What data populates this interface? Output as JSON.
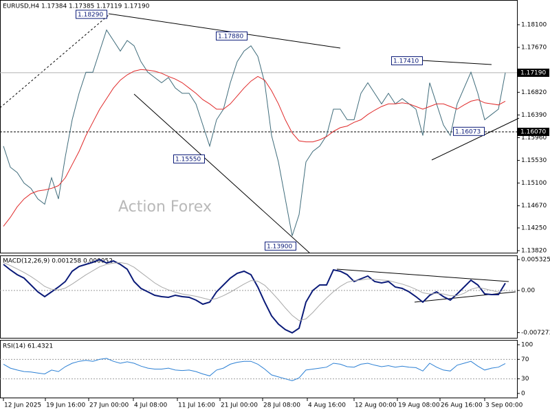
{
  "chart_data": [
    {
      "type": "line",
      "title": "EURUSD,H4  1.17384 1.17385 1.17119 1.17190",
      "watermark": "Action Forex",
      "series": [
        {
          "color": "#3e6b7a",
          "values": [
            1.158,
            1.154,
            1.153,
            1.151,
            1.15,
            1.148,
            1.147,
            1.152,
            1.148,
            1.156,
            1.163,
            1.168,
            1.172,
            1.172,
            1.176,
            1.18,
            1.178,
            1.176,
            1.178,
            1.177,
            1.174,
            1.172,
            1.171,
            1.17,
            1.171,
            1.169,
            1.168,
            1.168,
            1.166,
            1.162,
            1.158,
            1.163,
            1.165,
            1.17,
            1.174,
            1.176,
            1.177,
            1.175,
            1.17,
            1.16,
            1.155,
            1.148,
            1.141,
            1.145,
            1.155,
            1.157,
            1.158,
            1.16,
            1.165,
            1.165,
            1.163,
            1.163,
            1.168,
            1.17,
            1.168,
            1.166,
            1.168,
            1.166,
            1.167,
            1.166,
            1.165,
            1.16,
            1.17,
            1.166,
            1.162,
            1.16,
            1.166,
            1.169,
            1.172,
            1.168,
            1.163,
            1.164,
            1.165,
            1.1719
          ]
        },
        {
          "color": "#e02828",
          "values": [
            1.1428,
            1.1445,
            1.1465,
            1.148,
            1.149,
            1.1495,
            1.1497,
            1.15,
            1.1505,
            1.152,
            1.1545,
            1.157,
            1.16,
            1.1625,
            1.165,
            1.167,
            1.169,
            1.1705,
            1.1715,
            1.1722,
            1.1725,
            1.1724,
            1.1722,
            1.1718,
            1.1712,
            1.1707,
            1.17,
            1.169,
            1.168,
            1.1668,
            1.166,
            1.165,
            1.165,
            1.166,
            1.1675,
            1.169,
            1.1703,
            1.1712,
            1.1705,
            1.1685,
            1.166,
            1.163,
            1.1605,
            1.159,
            1.1588,
            1.1588,
            1.1592,
            1.1598,
            1.1608,
            1.1615,
            1.1618,
            1.1625,
            1.163,
            1.164,
            1.1648,
            1.1655,
            1.166,
            1.166,
            1.1662,
            1.166,
            1.1655,
            1.165,
            1.1655,
            1.166,
            1.166,
            1.1655,
            1.165,
            1.1658,
            1.1665,
            1.1668,
            1.1662,
            1.166,
            1.1658,
            1.1665
          ]
        }
      ],
      "xlim": [
        -0.5,
        74.7
      ],
      "ylim": [
        1.13781,
        1.18568
      ],
      "yticks": [
        {
          "value": 1.181,
          "label": "1.18100"
        },
        {
          "value": 1.1767,
          "label": "1.17670"
        },
        {
          "value": 1.1682,
          "label": "1.16820"
        },
        {
          "value": 1.1639,
          "label": "1.16390"
        },
        {
          "value": 1.1596,
          "label": "1.15960"
        },
        {
          "value": 1.1553,
          "label": "1.15530"
        },
        {
          "value": 1.151,
          "label": "1.15100"
        },
        {
          "value": 1.1467,
          "label": "1.14670"
        },
        {
          "value": 1.1425,
          "label": "1.14250"
        },
        {
          "value": 1.1382,
          "label": "1.13820"
        }
      ],
      "hlines": [
        {
          "value": 1.1607,
          "label": "1.16070"
        }
      ],
      "current_price": {
        "value": 1.1719,
        "label": "1.17190"
      },
      "annotations": [
        {
          "value": 1.1829,
          "label": "1.18290"
        },
        {
          "value": 1.1788,
          "label": "1.17880"
        },
        {
          "value": 1.1555,
          "label": "1.15550"
        },
        {
          "value": 1.139,
          "label": "1.13900"
        },
        {
          "value": 1.1741,
          "label": "1.17410"
        },
        {
          "value": 1.16073,
          "label": "1.16073"
        }
      ]
    },
    {
      "type": "line",
      "title": "MACD(12,26,9) 0.001258 0.000052",
      "series": [
        {
          "color": "#0a1a78",
          "values": [
            0.0045,
            0.00355,
            0.00272,
            0.00213,
            0.00095,
            -0.00024,
            -0.00106,
            -0.00024,
            0.00059,
            0.00154,
            0.00331,
            0.00414,
            0.0045,
            0.00485,
            0.00532,
            0.00473,
            0.00509,
            0.0045,
            0.00367,
            0.00154,
            0.00035,
            -0.00024,
            -0.00083,
            -0.00106,
            -0.00118,
            -0.00083,
            -0.00106,
            -0.00118,
            -0.00166,
            -0.00237,
            -0.00201,
            -0.00024,
            0.00095,
            0.00213,
            0.00296,
            0.00331,
            0.00272,
            0.00059,
            -0.00201,
            -0.00438,
            -0.0058,
            -0.00674,
            -0.0073,
            -0.00651,
            -0.00201,
            0,
            0.00095,
            0.00095,
            0.00355,
            0.00331,
            0.00272,
            0.00154,
            0.00201,
            0.00248,
            0.00154,
            0.0013,
            0.00154,
            0.00059,
            0.00035,
            -0.00024,
            -0.00106,
            -0.00201,
            -0.00083,
            -0.00024,
            -0.00106,
            -0.00166,
            -0.00059,
            0.00059,
            0.00177,
            0.00095,
            -0.00059,
            -0.00071,
            -0.00071,
            0.00126
          ]
        },
        {
          "color": "#a8a8a8",
          "values": [
            0.0048,
            0.0043,
            0.0037,
            0.0031,
            0.0024,
            0.0016,
            0.0007,
            0.0002,
            0.0001,
            0.0004,
            0.0011,
            0.0019,
            0.0027,
            0.0034,
            0.0041,
            0.0045,
            0.0047,
            0.0048,
            0.0046,
            0.004,
            0.0031,
            0.0022,
            0.0013,
            0.0006,
            0.0001,
            -0.0003,
            -0.0006,
            -0.0008,
            -0.001,
            -0.0013,
            -0.0016,
            -0.0014,
            -0.0009,
            -0.0003,
            0.0004,
            0.0011,
            0.0017,
            0.0016,
            0.0009,
            -0.0003,
            -0.0016,
            -0.003,
            -0.0043,
            -0.0052,
            -0.0049,
            -0.0038,
            -0.0025,
            -0.0013,
            -0.0002,
            0.0007,
            0.0014,
            0.0017,
            0.0018,
            0.002,
            0.0019,
            0.0018,
            0.0017,
            0.0014,
            0.0011,
            0.0007,
            0.0002,
            -0.0004,
            -0.0006,
            -0.0005,
            -0.0006,
            -0.0009,
            -0.0009,
            -0.0005,
            0.0002,
            0.0005,
            0.0003,
            0,
            -0.0003,
            0.0001
          ]
        }
      ],
      "xlim": [
        -0.5,
        74.7
      ],
      "ylim": [
        -0.008165,
        0.006035
      ],
      "yticks": [
        0.005325,
        {
          "value": 0,
          "label": "0.00"
        },
        -0.007273
      ],
      "levels": [
        0
      ]
    },
    {
      "type": "line",
      "title": "RSI(14) 61.4321",
      "series": [
        {
          "color": "#2a7fd4",
          "values": [
            60,
            52,
            48,
            45,
            44,
            42,
            40,
            48,
            45,
            55,
            62,
            66,
            68,
            66,
            70,
            72,
            66,
            62,
            65,
            62,
            56,
            52,
            50,
            50,
            52,
            48,
            47,
            48,
            45,
            40,
            36,
            48,
            52,
            60,
            64,
            66,
            66,
            60,
            50,
            38,
            34,
            30,
            26,
            32,
            48,
            50,
            52,
            54,
            62,
            60,
            55,
            54,
            60,
            62,
            58,
            55,
            57,
            54,
            56,
            54,
            53,
            46,
            62,
            54,
            48,
            46,
            58,
            62,
            66,
            56,
            48,
            52,
            54,
            61.4321
          ]
        }
      ],
      "xlim": [
        -0.5,
        74.7
      ],
      "ylim": [
        -9.9,
        108.5
      ],
      "yticks": [
        100,
        70,
        30,
        0
      ],
      "levels": [
        70,
        30
      ],
      "xticks": [
        {
          "value": 0,
          "label": "12 Jun 2025"
        },
        {
          "value": 6.1,
          "label": "19 Jun 16:00"
        },
        {
          "value": 12.4,
          "label": "27 Jun 00:00"
        },
        {
          "value": 18.9,
          "label": "4 Jul 08:00"
        },
        {
          "value": 25.3,
          "label": "11 Jul 16:00"
        },
        {
          "value": 31.5,
          "label": "21 Jul 00:00"
        },
        {
          "value": 37.7,
          "label": "28 Jul 08:00"
        },
        {
          "value": 44.2,
          "label": "4 Aug 16:00"
        },
        {
          "value": 51,
          "label": "12 Aug 00:00"
        },
        {
          "value": 57.3,
          "label": "19 Aug 08:00"
        },
        {
          "value": 63.5,
          "label": "26 Aug 16:00"
        },
        {
          "value": 70,
          "label": "3 Sep 00:00"
        }
      ]
    }
  ]
}
